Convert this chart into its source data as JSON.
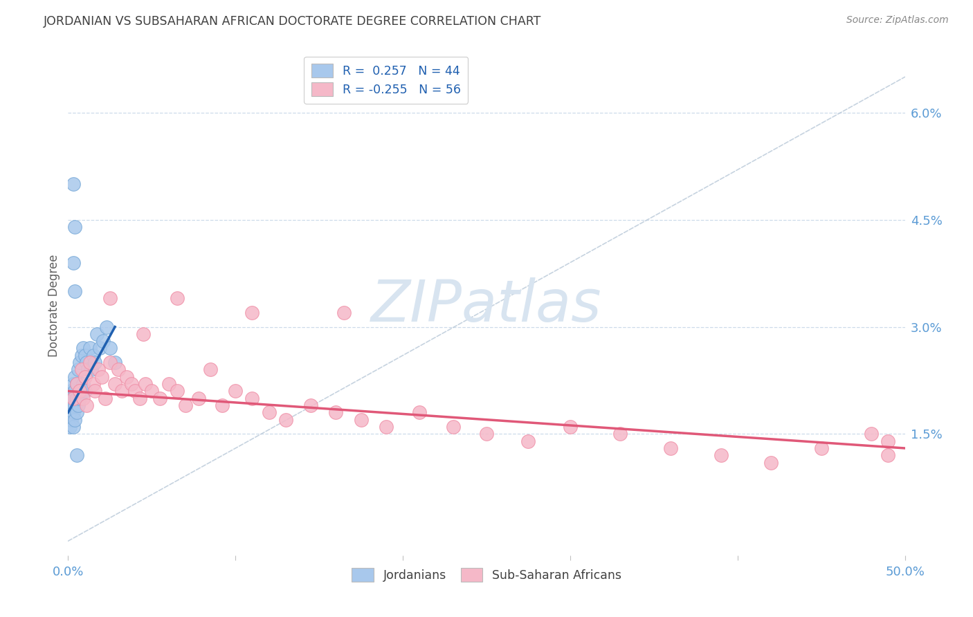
{
  "title": "JORDANIAN VS SUBSAHARAN AFRICAN DOCTORATE DEGREE CORRELATION CHART",
  "source": "Source: ZipAtlas.com",
  "ylabel": "Doctorate Degree",
  "right_yticks": [
    "1.5%",
    "3.0%",
    "4.5%",
    "6.0%"
  ],
  "right_ytick_vals": [
    0.015,
    0.03,
    0.045,
    0.06
  ],
  "xlim": [
    0.0,
    0.5
  ],
  "ylim": [
    -0.002,
    0.068
  ],
  "blue_color": "#A8C8EC",
  "pink_color": "#F5B8C8",
  "blue_edge_color": "#7AAAD8",
  "pink_edge_color": "#F090A8",
  "blue_line_color": "#2060B0",
  "pink_line_color": "#E05878",
  "diag_line_color": "#B8C8D8",
  "bg_color": "#FFFFFF",
  "grid_color": "#C8D8E8",
  "title_color": "#404040",
  "right_axis_color": "#5B9BD5",
  "bottom_label_color": "#404040",
  "watermark_color": "#D8E4F0",
  "jordanians_x": [
    0.001,
    0.001,
    0.001,
    0.002,
    0.002,
    0.002,
    0.003,
    0.003,
    0.003,
    0.003,
    0.004,
    0.004,
    0.004,
    0.004,
    0.005,
    0.005,
    0.005,
    0.006,
    0.006,
    0.007,
    0.007,
    0.008,
    0.008,
    0.009,
    0.009,
    0.01,
    0.01,
    0.011,
    0.012,
    0.013,
    0.014,
    0.015,
    0.016,
    0.017,
    0.019,
    0.021,
    0.023,
    0.025,
    0.028,
    0.003,
    0.004,
    0.003,
    0.004,
    0.005
  ],
  "jordanians_y": [
    0.018,
    0.02,
    0.016,
    0.021,
    0.019,
    0.017,
    0.022,
    0.02,
    0.018,
    0.016,
    0.023,
    0.021,
    0.019,
    0.017,
    0.022,
    0.02,
    0.018,
    0.024,
    0.019,
    0.025,
    0.02,
    0.026,
    0.021,
    0.027,
    0.022,
    0.026,
    0.021,
    0.025,
    0.024,
    0.027,
    0.024,
    0.026,
    0.025,
    0.029,
    0.027,
    0.028,
    0.03,
    0.027,
    0.025,
    0.05,
    0.044,
    0.039,
    0.035,
    0.012
  ],
  "subsaharan_x": [
    0.003,
    0.005,
    0.007,
    0.008,
    0.009,
    0.01,
    0.011,
    0.013,
    0.015,
    0.016,
    0.018,
    0.02,
    0.022,
    0.025,
    0.028,
    0.03,
    0.032,
    0.035,
    0.038,
    0.04,
    0.043,
    0.046,
    0.05,
    0.055,
    0.06,
    0.065,
    0.07,
    0.078,
    0.085,
    0.092,
    0.1,
    0.11,
    0.12,
    0.13,
    0.145,
    0.16,
    0.175,
    0.19,
    0.21,
    0.23,
    0.25,
    0.275,
    0.3,
    0.33,
    0.36,
    0.39,
    0.42,
    0.45,
    0.48,
    0.49,
    0.025,
    0.045,
    0.065,
    0.11,
    0.165,
    0.49
  ],
  "subsaharan_y": [
    0.02,
    0.022,
    0.021,
    0.024,
    0.02,
    0.023,
    0.019,
    0.025,
    0.022,
    0.021,
    0.024,
    0.023,
    0.02,
    0.025,
    0.022,
    0.024,
    0.021,
    0.023,
    0.022,
    0.021,
    0.02,
    0.022,
    0.021,
    0.02,
    0.022,
    0.021,
    0.019,
    0.02,
    0.024,
    0.019,
    0.021,
    0.02,
    0.018,
    0.017,
    0.019,
    0.018,
    0.017,
    0.016,
    0.018,
    0.016,
    0.015,
    0.014,
    0.016,
    0.015,
    0.013,
    0.012,
    0.011,
    0.013,
    0.015,
    0.012,
    0.034,
    0.029,
    0.034,
    0.032,
    0.032,
    0.014
  ],
  "blue_trend_x": [
    0.0,
    0.028
  ],
  "blue_trend_y": [
    0.018,
    0.03
  ],
  "pink_trend_x": [
    0.0,
    0.5
  ],
  "pink_trend_y": [
    0.021,
    0.013
  ],
  "xtick_positions": [
    0.0,
    0.1,
    0.2,
    0.3,
    0.4,
    0.5
  ],
  "xtick_labels": [
    "0.0%",
    "",
    "",
    "",
    "",
    "50.0%"
  ]
}
